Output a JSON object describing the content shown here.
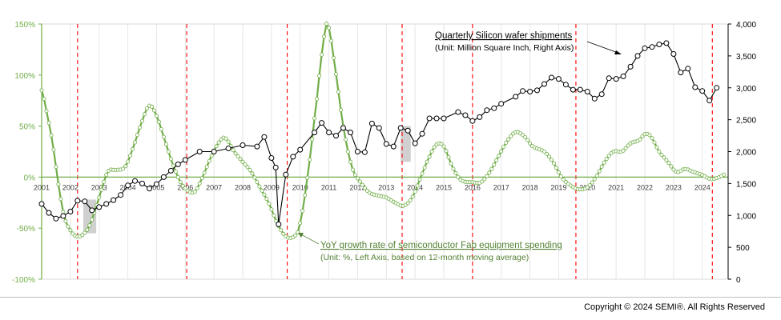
{
  "chart_data": {
    "type": "line",
    "left_axis": {
      "unit": "%",
      "ylim": [
        -100,
        150
      ],
      "ticks": [
        "-100%",
        "-50%",
        "0%",
        "50%",
        "100%",
        "150%"
      ],
      "tick_values": [
        -100,
        -50,
        0,
        50,
        100,
        150
      ],
      "color": "#70ad47"
    },
    "right_axis": {
      "ylim": [
        0,
        4000
      ],
      "ticks": [
        "0",
        "500",
        "1,000",
        "1,500",
        "2,000",
        "2,500",
        "3,000",
        "3,500",
        "4,000"
      ],
      "tick_values": [
        0,
        500,
        1000,
        1500,
        2000,
        2500,
        3000,
        3500,
        4000
      ]
    },
    "x_range": [
      2001,
      2024.9
    ],
    "years": [
      "2001",
      "2002",
      "2003",
      "2004",
      "2005",
      "2006",
      "2007",
      "2008",
      "2009",
      "2010",
      "2011",
      "2012",
      "2013",
      "2014",
      "2015",
      "2016",
      "2017",
      "2018",
      "2019",
      "2020",
      "2021",
      "2022",
      "2023",
      "2024"
    ],
    "series": [
      {
        "axis": "right",
        "color": "#000000",
        "label_title": "Quarterly Silicon wafer shipments",
        "label_sub": "(Unit: Million Square Inch, Right Axis)",
        "anchors": [
          [
            2001.0,
            1180
          ],
          [
            2001.25,
            1040
          ],
          [
            2001.5,
            950
          ],
          [
            2001.75,
            990
          ],
          [
            2002.0,
            1060
          ],
          [
            2002.25,
            1230
          ],
          [
            2002.5,
            1220
          ],
          [
            2002.75,
            1080
          ],
          [
            2003.0,
            1130
          ],
          [
            2003.25,
            1180
          ],
          [
            2003.5,
            1240
          ],
          [
            2003.75,
            1320
          ],
          [
            2004.0,
            1470
          ],
          [
            2004.25,
            1540
          ],
          [
            2004.5,
            1500
          ],
          [
            2004.75,
            1420
          ],
          [
            2005.0,
            1490
          ],
          [
            2005.25,
            1600
          ],
          [
            2005.5,
            1700
          ],
          [
            2005.75,
            1800
          ],
          [
            2006.0,
            1870
          ],
          [
            2006.5,
            2000
          ],
          [
            2007.0,
            2000
          ],
          [
            2007.5,
            2050
          ],
          [
            2008.0,
            2100
          ],
          [
            2008.5,
            2080
          ],
          [
            2008.75,
            2230
          ],
          [
            2009.0,
            1900
          ],
          [
            2009.15,
            1750
          ],
          [
            2009.25,
            860
          ],
          [
            2009.5,
            1640
          ],
          [
            2009.75,
            1920
          ],
          [
            2010.0,
            2030
          ],
          [
            2010.5,
            2300
          ],
          [
            2010.75,
            2450
          ],
          [
            2011.0,
            2300
          ],
          [
            2011.25,
            2250
          ],
          [
            2011.5,
            2370
          ],
          [
            2011.75,
            2300
          ],
          [
            2012.0,
            2000
          ],
          [
            2012.25,
            1990
          ],
          [
            2012.5,
            2440
          ],
          [
            2012.75,
            2370
          ],
          [
            2013.0,
            2120
          ],
          [
            2013.25,
            2080
          ],
          [
            2013.5,
            2370
          ],
          [
            2013.75,
            2330
          ],
          [
            2014.0,
            2130
          ],
          [
            2014.25,
            2280
          ],
          [
            2014.5,
            2520
          ],
          [
            2014.75,
            2520
          ],
          [
            2015.0,
            2520
          ],
          [
            2015.5,
            2620
          ],
          [
            2015.75,
            2570
          ],
          [
            2016.0,
            2480
          ],
          [
            2016.25,
            2540
          ],
          [
            2016.5,
            2650
          ],
          [
            2016.75,
            2680
          ],
          [
            2017.0,
            2750
          ],
          [
            2017.5,
            2860
          ],
          [
            2017.75,
            2950
          ],
          [
            2018.0,
            2940
          ],
          [
            2018.25,
            2960
          ],
          [
            2018.5,
            3060
          ],
          [
            2018.75,
            3160
          ],
          [
            2019.0,
            3140
          ],
          [
            2019.25,
            3050
          ],
          [
            2019.5,
            2970
          ],
          [
            2019.75,
            2970
          ],
          [
            2020.0,
            2940
          ],
          [
            2020.25,
            2830
          ],
          [
            2020.5,
            2900
          ],
          [
            2020.75,
            3150
          ],
          [
            2021.0,
            3140
          ],
          [
            2021.25,
            3180
          ],
          [
            2021.5,
            3330
          ],
          [
            2021.75,
            3500
          ],
          [
            2022.0,
            3620
          ],
          [
            2022.25,
            3640
          ],
          [
            2022.5,
            3680
          ],
          [
            2022.75,
            3700
          ],
          [
            2023.0,
            3530
          ],
          [
            2023.25,
            3240
          ],
          [
            2023.5,
            3300
          ],
          [
            2023.75,
            3010
          ],
          [
            2024.0,
            2950
          ],
          [
            2024.25,
            2800
          ],
          [
            2024.5,
            3000
          ]
        ]
      },
      {
        "axis": "left",
        "color": "#70ad47",
        "label_title": "YoY growth rate of semiconductor Fab equipment spending",
        "label_sub": "(Unit: %, Left Axis, based on 12-month moving average)",
        "anchors": [
          [
            2001.0,
            85
          ],
          [
            2001.2,
            60
          ],
          [
            2001.4,
            30
          ],
          [
            2001.6,
            -10
          ],
          [
            2001.8,
            -40
          ],
          [
            2002.0,
            -52
          ],
          [
            2002.2,
            -58
          ],
          [
            2002.45,
            -56
          ],
          [
            2002.7,
            -45
          ],
          [
            2003.0,
            -20
          ],
          [
            2003.3,
            5
          ],
          [
            2003.6,
            7
          ],
          [
            2003.9,
            10
          ],
          [
            2004.2,
            30
          ],
          [
            2004.5,
            55
          ],
          [
            2004.75,
            70
          ],
          [
            2005.0,
            60
          ],
          [
            2005.3,
            35
          ],
          [
            2005.6,
            10
          ],
          [
            2005.9,
            -8
          ],
          [
            2006.3,
            -15
          ],
          [
            2006.6,
            0
          ],
          [
            2006.9,
            20
          ],
          [
            2007.2,
            35
          ],
          [
            2007.4,
            38
          ],
          [
            2007.7,
            25
          ],
          [
            2008.0,
            15
          ],
          [
            2008.3,
            5
          ],
          [
            2008.6,
            -10
          ],
          [
            2008.9,
            -25
          ],
          [
            2009.2,
            -45
          ],
          [
            2009.5,
            -58
          ],
          [
            2009.8,
            -58
          ],
          [
            2010.0,
            -45
          ],
          [
            2010.3,
            10
          ],
          [
            2010.6,
            80
          ],
          [
            2010.8,
            130
          ],
          [
            2010.95,
            150
          ],
          [
            2011.2,
            110
          ],
          [
            2011.5,
            50
          ],
          [
            2011.8,
            10
          ],
          [
            2012.1,
            -5
          ],
          [
            2012.4,
            -15
          ],
          [
            2012.7,
            -18
          ],
          [
            2013.0,
            -20
          ],
          [
            2013.3,
            -25
          ],
          [
            2013.6,
            -28
          ],
          [
            2013.9,
            -20
          ],
          [
            2014.2,
            0
          ],
          [
            2014.5,
            20
          ],
          [
            2014.75,
            32
          ],
          [
            2015.0,
            30
          ],
          [
            2015.3,
            10
          ],
          [
            2015.6,
            -3
          ],
          [
            2016.0,
            -5
          ],
          [
            2016.3,
            -5
          ],
          [
            2016.6,
            5
          ],
          [
            2016.9,
            20
          ],
          [
            2017.2,
            35
          ],
          [
            2017.5,
            44
          ],
          [
            2017.8,
            40
          ],
          [
            2018.1,
            30
          ],
          [
            2018.5,
            25
          ],
          [
            2018.8,
            15
          ],
          [
            2019.1,
            0
          ],
          [
            2019.4,
            -8
          ],
          [
            2019.7,
            -12
          ],
          [
            2020.0,
            -10
          ],
          [
            2020.3,
            0
          ],
          [
            2020.6,
            15
          ],
          [
            2020.9,
            25
          ],
          [
            2021.2,
            25
          ],
          [
            2021.5,
            33
          ],
          [
            2021.8,
            36
          ],
          [
            2022.0,
            42
          ],
          [
            2022.2,
            40
          ],
          [
            2022.5,
            25
          ],
          [
            2022.8,
            15
          ],
          [
            2023.1,
            5
          ],
          [
            2023.4,
            8
          ],
          [
            2023.7,
            5
          ],
          [
            2024.0,
            2
          ],
          [
            2024.3,
            -2
          ],
          [
            2024.6,
            0
          ],
          [
            2024.8,
            3
          ]
        ]
      }
    ],
    "red_dashed_lines_x": [
      2002.25,
      2006.05,
      2009.55,
      2013.55,
      2016.0,
      2019.6,
      2024.35
    ],
    "shaded_periods": [
      {
        "x": [
          2002.45,
          2002.9
        ],
        "y": [
          -55,
          -22
        ]
      },
      {
        "x": [
          2013.5,
          2013.85
        ],
        "y": [
          15,
          50
        ]
      }
    ]
  },
  "copyright": "Copyright © 2024 SEMI®. All Rights Reserved"
}
